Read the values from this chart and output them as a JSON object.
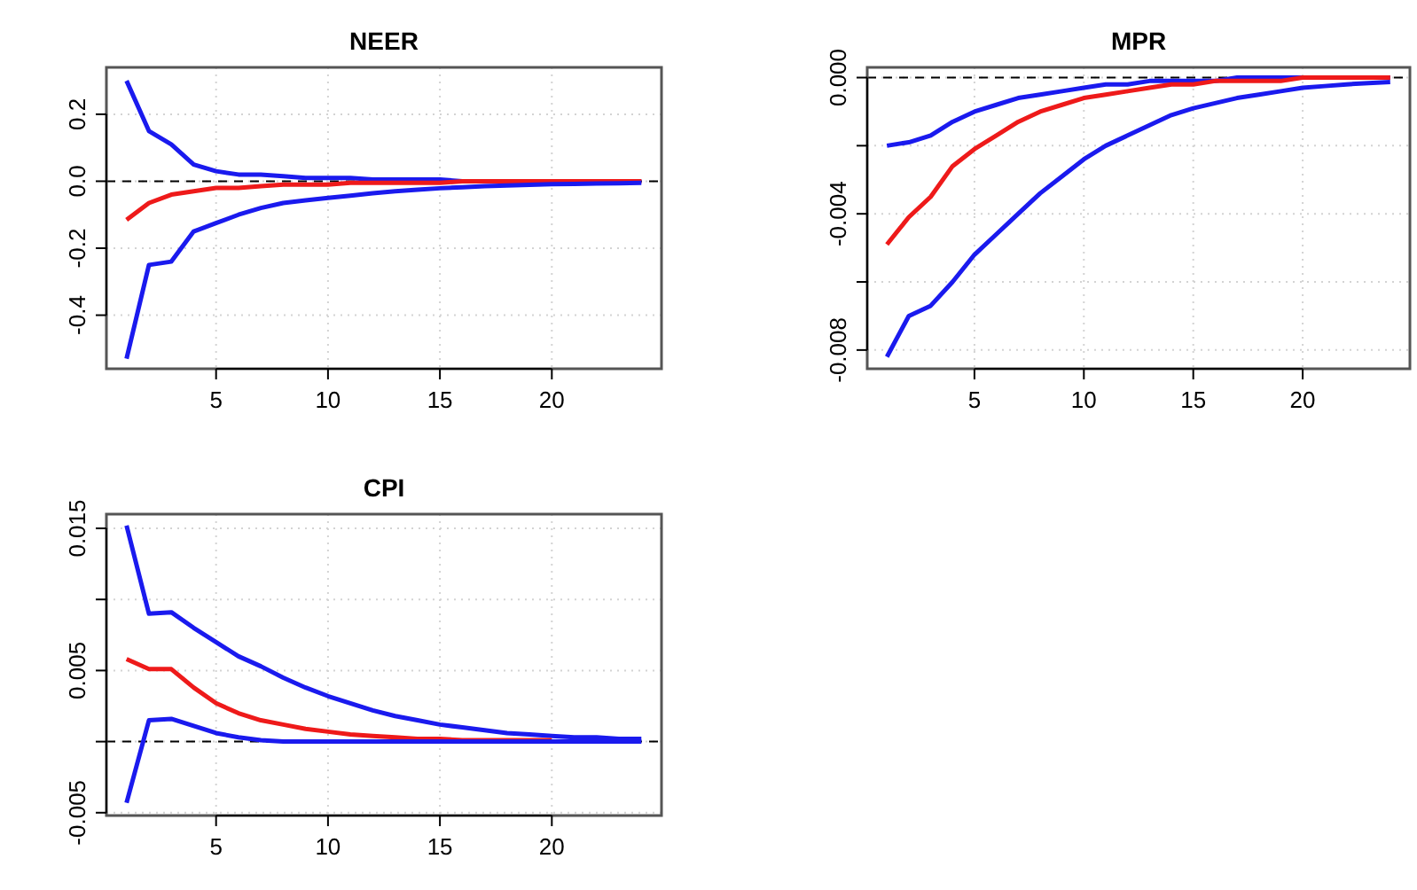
{
  "chart_data": [
    {
      "type": "line",
      "title": "NEER",
      "x": [
        1,
        2,
        3,
        4,
        5,
        6,
        7,
        8,
        9,
        10,
        11,
        12,
        13,
        14,
        15,
        16,
        17,
        18,
        19,
        20,
        21,
        22,
        23,
        24
      ],
      "xlim": [
        0.1,
        24.9
      ],
      "xticks": [
        5,
        10,
        15,
        20
      ],
      "ylim": [
        -0.56,
        0.34
      ],
      "yticks": [
        -0.4,
        -0.2,
        {
          "value": 0,
          "label": "0.0"
        },
        0.2
      ],
      "grid": true,
      "ref_lines": [
        {
          "axis": "y",
          "value": 0,
          "color": "#000000",
          "line_style": "dashed"
        }
      ],
      "series": [
        {
          "color": "#1a1aee",
          "values": [
            0.3,
            0.15,
            0.11,
            0.05,
            0.03,
            0.02,
            0.02,
            0.015,
            0.01,
            0.01,
            0.01,
            0.005,
            0.005,
            0.005,
            0.005,
            0,
            0,
            0,
            0,
            0,
            0,
            0,
            0,
            0
          ]
        },
        {
          "color": "#ee1a1a",
          "values": [
            -0.115,
            -0.065,
            -0.04,
            -0.03,
            -0.02,
            -0.02,
            -0.015,
            -0.01,
            -0.01,
            -0.01,
            -0.005,
            -0.005,
            -0.005,
            -0.005,
            -0.005,
            0,
            0,
            0,
            0,
            0,
            0,
            0,
            0,
            0
          ]
        },
        {
          "color": "#1a1aee",
          "values": [
            -0.53,
            -0.25,
            -0.24,
            -0.15,
            -0.125,
            -0.1,
            -0.08,
            -0.065,
            -0.057,
            -0.05,
            -0.043,
            -0.036,
            -0.03,
            -0.025,
            -0.021,
            -0.018,
            -0.015,
            -0.013,
            -0.011,
            -0.009,
            -0.008,
            -0.007,
            -0.006,
            -0.005
          ]
        }
      ]
    },
    {
      "type": "line",
      "title": "MPR",
      "x": [
        1,
        2,
        3,
        4,
        5,
        6,
        7,
        8,
        9,
        10,
        11,
        12,
        13,
        14,
        15,
        16,
        17,
        18,
        19,
        20,
        21,
        22,
        23,
        24
      ],
      "xlim": [
        0.1,
        24.9
      ],
      "xticks": [
        5,
        10,
        15,
        20
      ],
      "ylim": [
        -0.00855,
        0.0003
      ],
      "yticks": [
        {
          "value": -0.008,
          "label": "-0.008"
        },
        {
          "value": -0.006,
          "label": null
        },
        {
          "value": -0.004,
          "label": "-0.004"
        },
        {
          "value": -0.002,
          "label": null
        },
        {
          "value": 0,
          "label": "0.000"
        }
      ],
      "grid": true,
      "ref_lines": [
        {
          "axis": "y",
          "value": 0,
          "color": "#000000",
          "line_style": "dashed"
        }
      ],
      "series": [
        {
          "color": "#1a1aee",
          "values": [
            -0.002,
            -0.0019,
            -0.0017,
            -0.0013,
            -0.001,
            -0.0008,
            -0.0006,
            -0.0005,
            -0.0004,
            -0.0003,
            -0.0002,
            -0.0002,
            -0.0001,
            -0.0001,
            -0.0001,
            -0.0001,
            0,
            0,
            0,
            0,
            0,
            0,
            0,
            0
          ]
        },
        {
          "color": "#ee1a1a",
          "values": [
            -0.0049,
            -0.0041,
            -0.0035,
            -0.0026,
            -0.0021,
            -0.0017,
            -0.0013,
            -0.001,
            -0.0008,
            -0.0006,
            -0.0005,
            -0.0004,
            -0.0003,
            -0.0002,
            -0.0002,
            -0.0001,
            -0.0001,
            -0.0001,
            -0.0001,
            0,
            0,
            0,
            0,
            0
          ]
        },
        {
          "color": "#1a1aee",
          "values": [
            -0.0082,
            -0.007,
            -0.0067,
            -0.006,
            -0.0052,
            -0.0046,
            -0.004,
            -0.0034,
            -0.0029,
            -0.0024,
            -0.002,
            -0.0017,
            -0.0014,
            -0.0011,
            -0.0009,
            -0.00075,
            -0.0006,
            -0.0005,
            -0.0004,
            -0.0003,
            -0.00025,
            -0.0002,
            -0.00016,
            -0.00013
          ]
        }
      ]
    },
    {
      "type": "line",
      "title": "CPI",
      "x": [
        1,
        2,
        3,
        4,
        5,
        6,
        7,
        8,
        9,
        10,
        11,
        12,
        13,
        14,
        15,
        16,
        17,
        18,
        19,
        20,
        21,
        22,
        23,
        24
      ],
      "xlim": [
        0.1,
        24.9
      ],
      "xticks": [
        5,
        10,
        15,
        20
      ],
      "ylim": [
        -0.0052,
        0.016
      ],
      "yticks": [
        {
          "value": -0.005,
          "label": "-0.005"
        },
        {
          "value": 0,
          "label": null
        },
        {
          "value": 0.005,
          "label": "0.005"
        },
        {
          "value": 0.01,
          "label": null
        },
        {
          "value": 0.015,
          "label": "0.015"
        }
      ],
      "grid": true,
      "ref_lines": [
        {
          "axis": "y",
          "value": 0,
          "color": "#000000",
          "line_style": "dashed"
        }
      ],
      "series": [
        {
          "color": "#1a1aee",
          "values": [
            0.0152,
            0.009,
            0.0091,
            0.008,
            0.007,
            0.006,
            0.0053,
            0.0045,
            0.0038,
            0.0032,
            0.0027,
            0.0022,
            0.0018,
            0.0015,
            0.0012,
            0.001,
            0.0008,
            0.0006,
            0.0005,
            0.0004,
            0.0003,
            0.0003,
            0.0002,
            0.0002
          ]
        },
        {
          "color": "#ee1a1a",
          "values": [
            0.0058,
            0.0051,
            0.0051,
            0.0038,
            0.0027,
            0.002,
            0.0015,
            0.0012,
            0.0009,
            0.0007,
            0.0005,
            0.0004,
            0.0003,
            0.0002,
            0.0002,
            0.0001,
            0.0001,
            0.0001,
            0.0001,
            0.0001,
            null,
            null,
            null,
            null
          ]
        },
        {
          "color": "#1a1aee",
          "values": [
            -0.0043,
            0.0015,
            0.0016,
            0.0011,
            0.0006,
            0.0003,
            0.0001,
            0,
            0,
            0,
            0,
            0,
            0,
            0,
            0,
            0,
            0,
            0,
            0,
            0,
            0,
            0,
            0,
            0
          ]
        }
      ]
    }
  ]
}
